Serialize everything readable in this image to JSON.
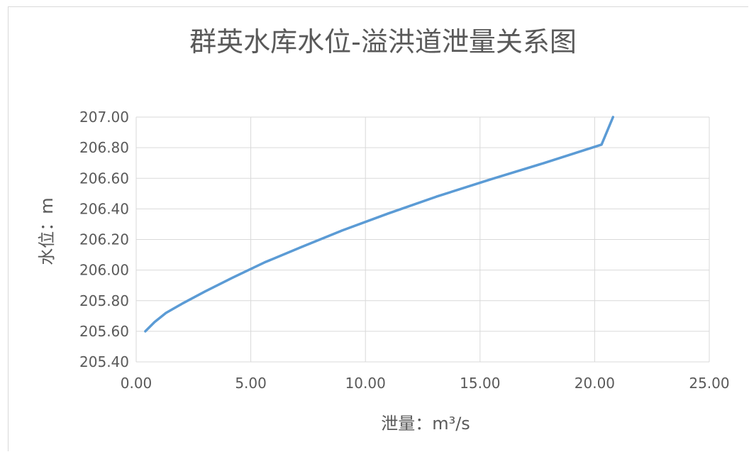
{
  "chart_data": {
    "type": "line",
    "title": "群英水库水位-溢洪道泄量关系图",
    "xlabel": "泄量：m³/s",
    "ylabel": "水位：m",
    "xlim": [
      0,
      25
    ],
    "ylim": [
      205.4,
      207.0
    ],
    "x_ticks": [
      "0.00",
      "5.00",
      "10.00",
      "15.00",
      "20.00",
      "25.00"
    ],
    "y_ticks": [
      "205.40",
      "205.60",
      "205.80",
      "206.00",
      "206.20",
      "206.40",
      "206.60",
      "206.80",
      "207.00"
    ],
    "grid": true,
    "legend": false,
    "line_color": "#5b9bd5",
    "series": [
      {
        "x": [
          0.4,
          0.8,
          1.3,
          2.0,
          3.0,
          4.2,
          5.6,
          7.2,
          9.0,
          11.0,
          13.1,
          15.4,
          17.8,
          20.3,
          20.8
        ],
        "y": [
          205.6,
          205.66,
          205.72,
          205.78,
          205.86,
          205.95,
          206.05,
          206.15,
          206.26,
          206.37,
          206.48,
          206.59,
          206.7,
          206.82,
          207.0
        ]
      }
    ]
  }
}
